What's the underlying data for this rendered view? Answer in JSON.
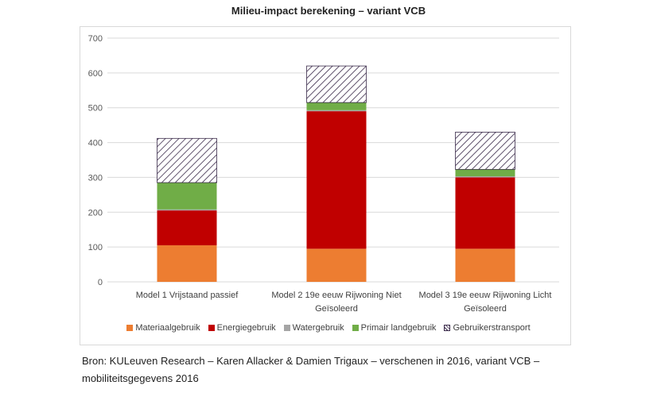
{
  "chart_data": {
    "type": "bar",
    "stacked": true,
    "title": "Milieu-impact berekening – variant VCB",
    "categories": [
      "Model 1 Vrijstaand passief",
      "Model 2 19e eeuw Rijwoning Niet Geïsoleerd",
      "Model 3 19e eeuw Rijwoning Licht Geïsoleerd"
    ],
    "category_lines": [
      [
        "Model 1 Vrijstaand passief"
      ],
      [
        "Model 2 19e eeuw Rijwoning Niet",
        "Geïsoleerd"
      ],
      [
        "Model 3 19e eeuw Rijwoning Licht",
        "Geïsoleerd"
      ]
    ],
    "series": [
      {
        "name": "Materiaalgebruik",
        "color": "#ed7d31",
        "values": [
          105,
          95,
          95
        ]
      },
      {
        "name": "Energiegebruik",
        "color": "#c00000",
        "values": [
          100,
          395,
          205
        ]
      },
      {
        "name": "Watergebruik",
        "color": "#a5a5a5",
        "values": [
          3,
          3,
          3
        ]
      },
      {
        "name": "Primair landgebruik",
        "color": "#70ad47",
        "values": [
          77,
          22,
          20
        ]
      },
      {
        "name": "Gebruikerstransport",
        "color": "hatch",
        "values": [
          127,
          105,
          107
        ]
      }
    ],
    "ylim": [
      0,
      700
    ],
    "yticks": [
      0,
      100,
      200,
      300,
      400,
      500,
      600,
      700
    ],
    "grid": true,
    "legend": "bottom"
  },
  "source": {
    "line1": "Bron: KULeuven Research – Karen Allacker & Damien Trigaux – verschenen in 2016, variant VCB –",
    "line2": "mobiliteitsgegevens 2016"
  }
}
